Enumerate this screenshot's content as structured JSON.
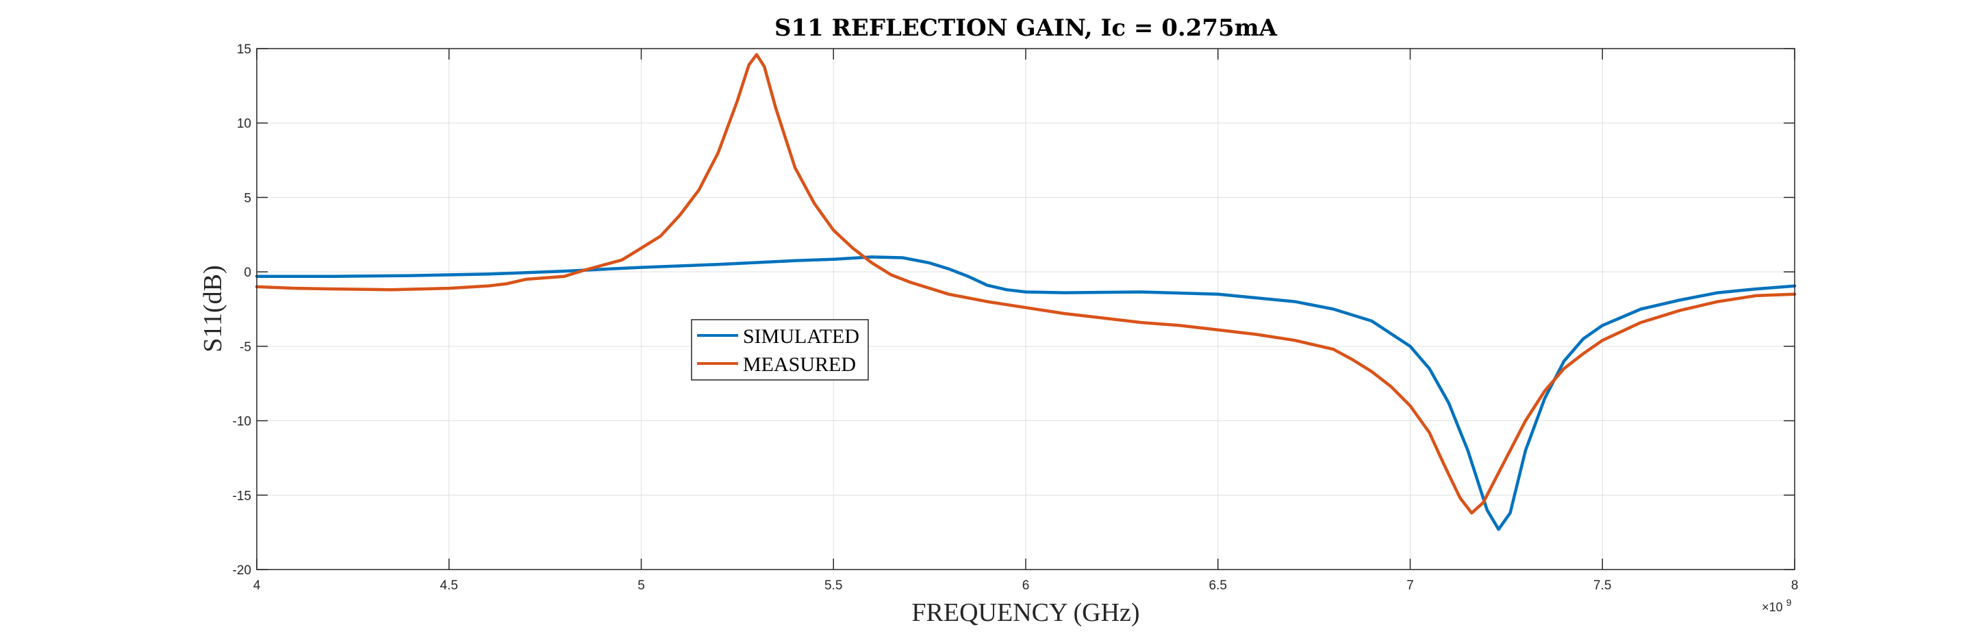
{
  "chart_data": {
    "type": "line",
    "title": "S11 REFLECTION GAIN, Ic = 0.275mA",
    "xlabel": "FREQUENCY (GHz)",
    "ylabel": "S11(dB)",
    "x_exponent_label": "×10",
    "x_exponent_power": "9",
    "xlim": [
      4000000000,
      8000000000
    ],
    "ylim": [
      -20,
      15
    ],
    "x_ticks": [
      4000000000,
      4500000000,
      5000000000,
      5500000000,
      6000000000,
      6500000000,
      7000000000,
      7500000000,
      8000000000
    ],
    "x_tick_labels": [
      "4",
      "4.5",
      "5",
      "5.5",
      "6",
      "6.5",
      "7",
      "7.5",
      "8"
    ],
    "y_ticks": [
      -20,
      -15,
      -10,
      -5,
      0,
      5,
      10,
      15
    ],
    "y_tick_labels": [
      "-20",
      "-15",
      "-10",
      "-5",
      "0",
      "5",
      "10",
      "15"
    ],
    "grid": true,
    "legend_position": "left-center",
    "series": [
      {
        "name": "SIMULATED",
        "color": "#0072BD",
        "points": [
          [
            4000000000,
            -0.3
          ],
          [
            4200000000,
            -0.3
          ],
          [
            4400000000,
            -0.25
          ],
          [
            4600000000,
            -0.15
          ],
          [
            4800000000,
            0.05
          ],
          [
            5000000000,
            0.3
          ],
          [
            5200000000,
            0.5
          ],
          [
            5400000000,
            0.75
          ],
          [
            5500000000,
            0.85
          ],
          [
            5600000000,
            1.0
          ],
          [
            5680000000,
            0.95
          ],
          [
            5750000000,
            0.6
          ],
          [
            5800000000,
            0.2
          ],
          [
            5850000000,
            -0.3
          ],
          [
            5900000000,
            -0.9
          ],
          [
            5950000000,
            -1.2
          ],
          [
            6000000000,
            -1.35
          ],
          [
            6100000000,
            -1.4
          ],
          [
            6300000000,
            -1.35
          ],
          [
            6500000000,
            -1.5
          ],
          [
            6700000000,
            -2.0
          ],
          [
            6800000000,
            -2.5
          ],
          [
            6900000000,
            -3.3
          ],
          [
            7000000000,
            -5.0
          ],
          [
            7050000000,
            -6.5
          ],
          [
            7100000000,
            -8.8
          ],
          [
            7150000000,
            -12.0
          ],
          [
            7200000000,
            -16.0
          ],
          [
            7230000000,
            -17.3
          ],
          [
            7260000000,
            -16.2
          ],
          [
            7300000000,
            -12.0
          ],
          [
            7350000000,
            -8.5
          ],
          [
            7400000000,
            -6.0
          ],
          [
            7450000000,
            -4.5
          ],
          [
            7500000000,
            -3.6
          ],
          [
            7600000000,
            -2.5
          ],
          [
            7700000000,
            -1.9
          ],
          [
            7800000000,
            -1.4
          ],
          [
            7900000000,
            -1.15
          ],
          [
            8000000000,
            -0.95
          ]
        ]
      },
      {
        "name": "MEASURED",
        "color": "#D95319",
        "points": [
          [
            4000000000,
            -1.0
          ],
          [
            4100000000,
            -1.1
          ],
          [
            4200000000,
            -1.15
          ],
          [
            4350000000,
            -1.2
          ],
          [
            4500000000,
            -1.1
          ],
          [
            4600000000,
            -0.95
          ],
          [
            4650000000,
            -0.8
          ],
          [
            4700000000,
            -0.5
          ],
          [
            4800000000,
            -0.3
          ],
          [
            4850000000,
            0.1
          ],
          [
            4950000000,
            0.8
          ],
          [
            5000000000,
            1.6
          ],
          [
            5050000000,
            2.4
          ],
          [
            5100000000,
            3.8
          ],
          [
            5150000000,
            5.5
          ],
          [
            5200000000,
            8.0
          ],
          [
            5250000000,
            11.5
          ],
          [
            5280000000,
            13.9
          ],
          [
            5300000000,
            14.6
          ],
          [
            5320000000,
            13.8
          ],
          [
            5350000000,
            11.0
          ],
          [
            5400000000,
            7.0
          ],
          [
            5450000000,
            4.6
          ],
          [
            5500000000,
            2.8
          ],
          [
            5550000000,
            1.6
          ],
          [
            5600000000,
            0.6
          ],
          [
            5650000000,
            -0.2
          ],
          [
            5700000000,
            -0.7
          ],
          [
            5800000000,
            -1.5
          ],
          [
            5900000000,
            -2.0
          ],
          [
            6000000000,
            -2.4
          ],
          [
            6100000000,
            -2.8
          ],
          [
            6200000000,
            -3.1
          ],
          [
            6300000000,
            -3.4
          ],
          [
            6400000000,
            -3.6
          ],
          [
            6500000000,
            -3.9
          ],
          [
            6600000000,
            -4.2
          ],
          [
            6700000000,
            -4.6
          ],
          [
            6800000000,
            -5.2
          ],
          [
            6850000000,
            -5.9
          ],
          [
            6900000000,
            -6.7
          ],
          [
            6950000000,
            -7.7
          ],
          [
            7000000000,
            -9.0
          ],
          [
            7050000000,
            -10.8
          ],
          [
            7080000000,
            -12.5
          ],
          [
            7100000000,
            -13.6
          ],
          [
            7130000000,
            -15.2
          ],
          [
            7160000000,
            -16.2
          ],
          [
            7190000000,
            -15.5
          ],
          [
            7230000000,
            -13.5
          ],
          [
            7270000000,
            -11.5
          ],
          [
            7300000000,
            -10.0
          ],
          [
            7350000000,
            -8.0
          ],
          [
            7400000000,
            -6.5
          ],
          [
            7450000000,
            -5.5
          ],
          [
            7500000000,
            -4.6
          ],
          [
            7600000000,
            -3.4
          ],
          [
            7700000000,
            -2.6
          ],
          [
            7800000000,
            -2.0
          ],
          [
            7900000000,
            -1.6
          ],
          [
            8000000000,
            -1.5
          ]
        ]
      }
    ]
  }
}
